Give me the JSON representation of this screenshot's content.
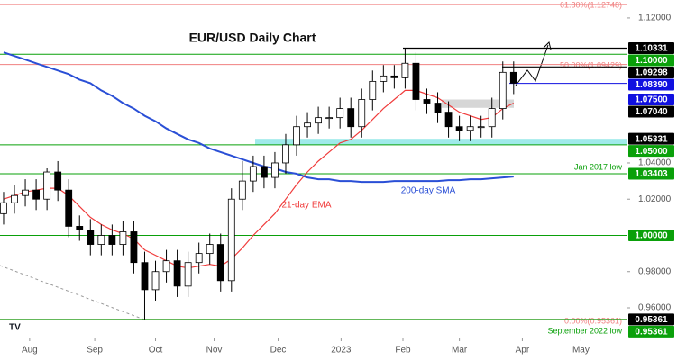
{
  "chart_data": {
    "type": "candlestick",
    "title": "EUR/USD Daily Chart",
    "open": [
      1.012,
      1.018,
      1.022,
      1.025,
      1.02,
      1.035,
      1.025,
      1.005,
      1.003,
      0.995,
      1.0,
      0.995,
      1.002,
      0.985,
      0.97,
      0.98,
      0.986,
      0.972,
      0.985,
      0.99,
      0.995,
      0.975,
      1.02,
      1.03,
      1.038,
      1.032,
      1.04,
      1.05,
      1.06,
      1.062,
      1.065,
      1.065,
      1.07,
      1.06,
      1.075,
      1.085,
      1.088,
      1.087,
      1.095,
      1.075,
      1.073,
      1.068,
      1.06,
      1.058,
      1.06,
      1.06,
      1.07,
      1.09
    ],
    "high": [
      1.024,
      1.028,
      1.031,
      1.031,
      1.037,
      1.041,
      1.031,
      1.011,
      1.009,
      1.006,
      1.006,
      1.008,
      1.008,
      0.991,
      0.986,
      0.992,
      0.992,
      0.991,
      0.996,
      1.001,
      1.001,
      1.026,
      1.041,
      1.044,
      1.044,
      1.046,
      1.056,
      1.066,
      1.068,
      1.071,
      1.071,
      1.076,
      1.076,
      1.081,
      1.091,
      1.094,
      1.094,
      1.1033,
      1.101,
      1.081,
      1.079,
      1.074,
      1.066,
      1.066,
      1.066,
      1.076,
      1.096,
      1.096
    ],
    "low": [
      1.006,
      1.012,
      1.016,
      1.014,
      1.014,
      1.019,
      0.999,
      0.997,
      0.989,
      0.989,
      0.989,
      0.989,
      0.979,
      0.9536,
      0.964,
      0.974,
      0.966,
      0.966,
      0.979,
      0.984,
      0.969,
      0.969,
      1.014,
      1.024,
      1.026,
      1.026,
      1.034,
      1.044,
      1.054,
      1.056,
      1.059,
      1.059,
      1.054,
      1.054,
      1.069,
      1.079,
      1.081,
      1.081,
      1.069,
      1.067,
      1.062,
      1.054,
      1.052,
      1.052,
      1.054,
      1.054,
      1.064,
      1.078
    ],
    "close": [
      1.018,
      1.022,
      1.025,
      1.02,
      1.035,
      1.025,
      1.005,
      1.003,
      0.995,
      1.0,
      0.995,
      1.002,
      0.985,
      0.97,
      0.98,
      0.986,
      0.972,
      0.985,
      0.99,
      0.995,
      0.975,
      1.02,
      1.03,
      1.038,
      1.032,
      1.04,
      1.05,
      1.06,
      1.062,
      1.065,
      1.065,
      1.07,
      1.06,
      1.075,
      1.085,
      1.088,
      1.087,
      1.095,
      1.075,
      1.073,
      1.068,
      1.06,
      1.058,
      1.06,
      1.06,
      1.07,
      1.09,
      1.084
    ],
    "up_color": "#ffffff",
    "down_color": "#000000",
    "series": [
      {
        "name": "21-day EMA",
        "color": "#f03c3c",
        "values": [
          1.02,
          1.022,
          1.024,
          1.025,
          1.026,
          1.026,
          1.022,
          1.016,
          1.01,
          1.006,
          1.003,
          1.001,
          0.998,
          0.992,
          0.989,
          0.986,
          0.983,
          0.982,
          0.983,
          0.984,
          0.983,
          0.987,
          0.993,
          1.0,
          1.006,
          1.012,
          1.02,
          1.028,
          1.035,
          1.041,
          1.046,
          1.051,
          1.053,
          1.058,
          1.064,
          1.07,
          1.075,
          1.08,
          1.08,
          1.078,
          1.076,
          1.072,
          1.068,
          1.066,
          1.064,
          1.065,
          1.07,
          1.073
        ]
      },
      {
        "name": "200-day SMA",
        "color": "#2a4fd6",
        "values": [
          1.101,
          1.099,
          1.097,
          1.095,
          1.093,
          1.091,
          1.089,
          1.086,
          1.084,
          1.08,
          1.077,
          1.073,
          1.07,
          1.066,
          1.063,
          1.059,
          1.056,
          1.053,
          1.051,
          1.048,
          1.046,
          1.044,
          1.042,
          1.04,
          1.038,
          1.037,
          1.035,
          1.034,
          1.032,
          1.031,
          1.031,
          1.03,
          1.03,
          1.0295,
          1.0295,
          1.0295,
          1.03,
          1.03,
          1.03,
          1.03,
          1.03,
          1.0305,
          1.0305,
          1.031,
          1.031,
          1.0315,
          1.032,
          1.0325
        ]
      }
    ],
    "xlim": [
      -0.33,
      57.4
    ],
    "xticks": [
      {
        "value": 2.4,
        "label": "Aug"
      },
      {
        "value": 8.4,
        "label": "Sep"
      },
      {
        "value": 14.0,
        "label": "Oct"
      },
      {
        "value": 19.4,
        "label": "Nov"
      },
      {
        "value": 25.3,
        "label": "Dec"
      },
      {
        "value": 31.1,
        "label": "2023"
      },
      {
        "value": 36.8,
        "label": "Feb"
      },
      {
        "value": 42.0,
        "label": "Mar"
      },
      {
        "value": 47.8,
        "label": "Apr"
      },
      {
        "value": 53.2,
        "label": "May"
      }
    ],
    "ylim": [
      0.9451,
      1.1299
    ],
    "yticks": [
      {
        "value": 1.12,
        "label": "1.12000"
      },
      {
        "value": 1.04,
        "label": "1.04000"
      },
      {
        "value": 1.02,
        "label": "1.02000"
      },
      {
        "value": 0.98,
        "label": "0.98000"
      },
      {
        "value": 0.96,
        "label": "0.96000"
      }
    ],
    "fib_levels": [
      {
        "value": 1.12748,
        "label": "61.80%(1.12748)"
      },
      {
        "value": 1.09429,
        "label": "50.00%(1.09429)"
      },
      {
        "value": 0.95361,
        "label": "0.00%(0.95361)"
      }
    ],
    "fib_color": "#f08080",
    "levels": [
      {
        "value": 1.10331,
        "label": "1.10331",
        "color": "#000000"
      },
      {
        "value": 1.1,
        "label": "1.10000",
        "color": "#0aa00a"
      },
      {
        "value": 1.09298,
        "label": "1.09298",
        "color": "#000000"
      },
      {
        "value": 1.0839,
        "label": "1.08390",
        "color": "#1010e0"
      },
      {
        "value": 1.075,
        "label": "1.07500",
        "color": "#1010e0"
      },
      {
        "value": 1.0704,
        "label": "1.07040",
        "color": "#000000"
      },
      {
        "value": 1.05331,
        "label": "1.05331",
        "color": "#000000"
      },
      {
        "value": 1.05,
        "label": "1.05000",
        "color": "#0aa00a"
      },
      {
        "value": 1.03403,
        "label": "1.03403",
        "color": "#0aa00a"
      },
      {
        "value": 1.0,
        "label": "1.00000",
        "color": "#0aa00a"
      },
      {
        "value": 0.95361,
        "label": "0.95361",
        "color": "#000000"
      },
      {
        "value": 0.95361,
        "label": "0.95361",
        "color": "#0aa00a"
      }
    ],
    "annotations": [
      {
        "text": "Jan 2017 low",
        "color": "#0aa00a"
      },
      {
        "text": "September 2022 low",
        "color": "#0aa00a"
      }
    ]
  }
}
